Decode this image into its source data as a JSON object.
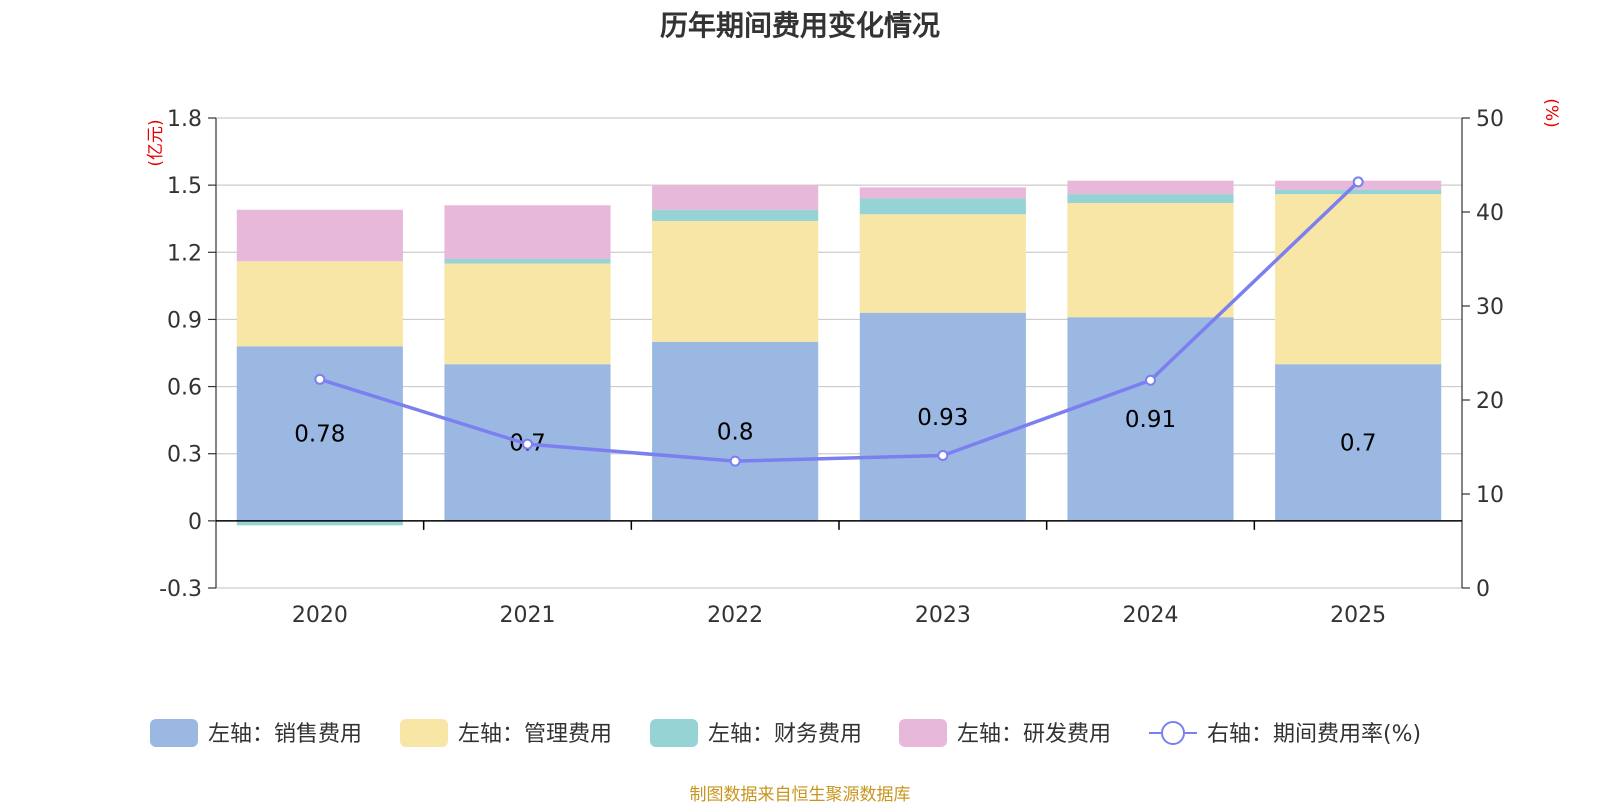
{
  "chart_data": {
    "type": "bar",
    "stacked": true,
    "title": "历年期间费用变化情况",
    "categories": [
      "2020",
      "2021",
      "2022",
      "2023",
      "2024",
      "2025"
    ],
    "left_axis": {
      "unit": "(亿元)",
      "ylim": [
        -0.3,
        1.8
      ],
      "ticks": [
        -0.3,
        0,
        0.3,
        0.6,
        0.9,
        1.2,
        1.5,
        1.8
      ],
      "tick_labels": [
        "-0.3",
        "0",
        "0.3",
        "0.6",
        "0.9",
        "1.2",
        "1.5",
        "1.8"
      ]
    },
    "right_axis": {
      "unit": "(%)",
      "ylim": [
        0,
        50
      ],
      "ticks": [
        0,
        10,
        20,
        30,
        40,
        50
      ],
      "tick_labels": [
        "0",
        "10",
        "20",
        "30",
        "40",
        "50"
      ]
    },
    "series": [
      {
        "name": "左轴：销售费用",
        "axis": "left",
        "type": "bar",
        "color": "#9bb8e2",
        "values": [
          0.78,
          0.7,
          0.8,
          0.93,
          0.91,
          0.7
        ],
        "labels": [
          "0.78",
          "0.7",
          "0.8",
          "0.93",
          "0.91",
          "0.7"
        ]
      },
      {
        "name": "左轴：管理费用",
        "axis": "left",
        "type": "bar",
        "color": "#f7e6a6",
        "values": [
          0.38,
          0.45,
          0.54,
          0.44,
          0.51,
          0.76
        ]
      },
      {
        "name": "左轴：财务费用",
        "axis": "left",
        "type": "bar",
        "color": "#96d3d5",
        "values": [
          -0.02,
          0.02,
          0.05,
          0.07,
          0.04,
          0.02
        ]
      },
      {
        "name": "左轴：研发费用",
        "axis": "left",
        "type": "bar",
        "color": "#e7b8da",
        "values": [
          0.23,
          0.24,
          0.11,
          0.05,
          0.06,
          0.04
        ]
      },
      {
        "name": "右轴：期间费用率(%)",
        "axis": "right",
        "type": "line",
        "color": "#7b7ff0",
        "values": [
          22.2,
          15.3,
          13.5,
          14.1,
          22.1,
          43.2
        ]
      }
    ]
  },
  "footer": {
    "source": "制图数据来自恒生聚源数据库"
  }
}
